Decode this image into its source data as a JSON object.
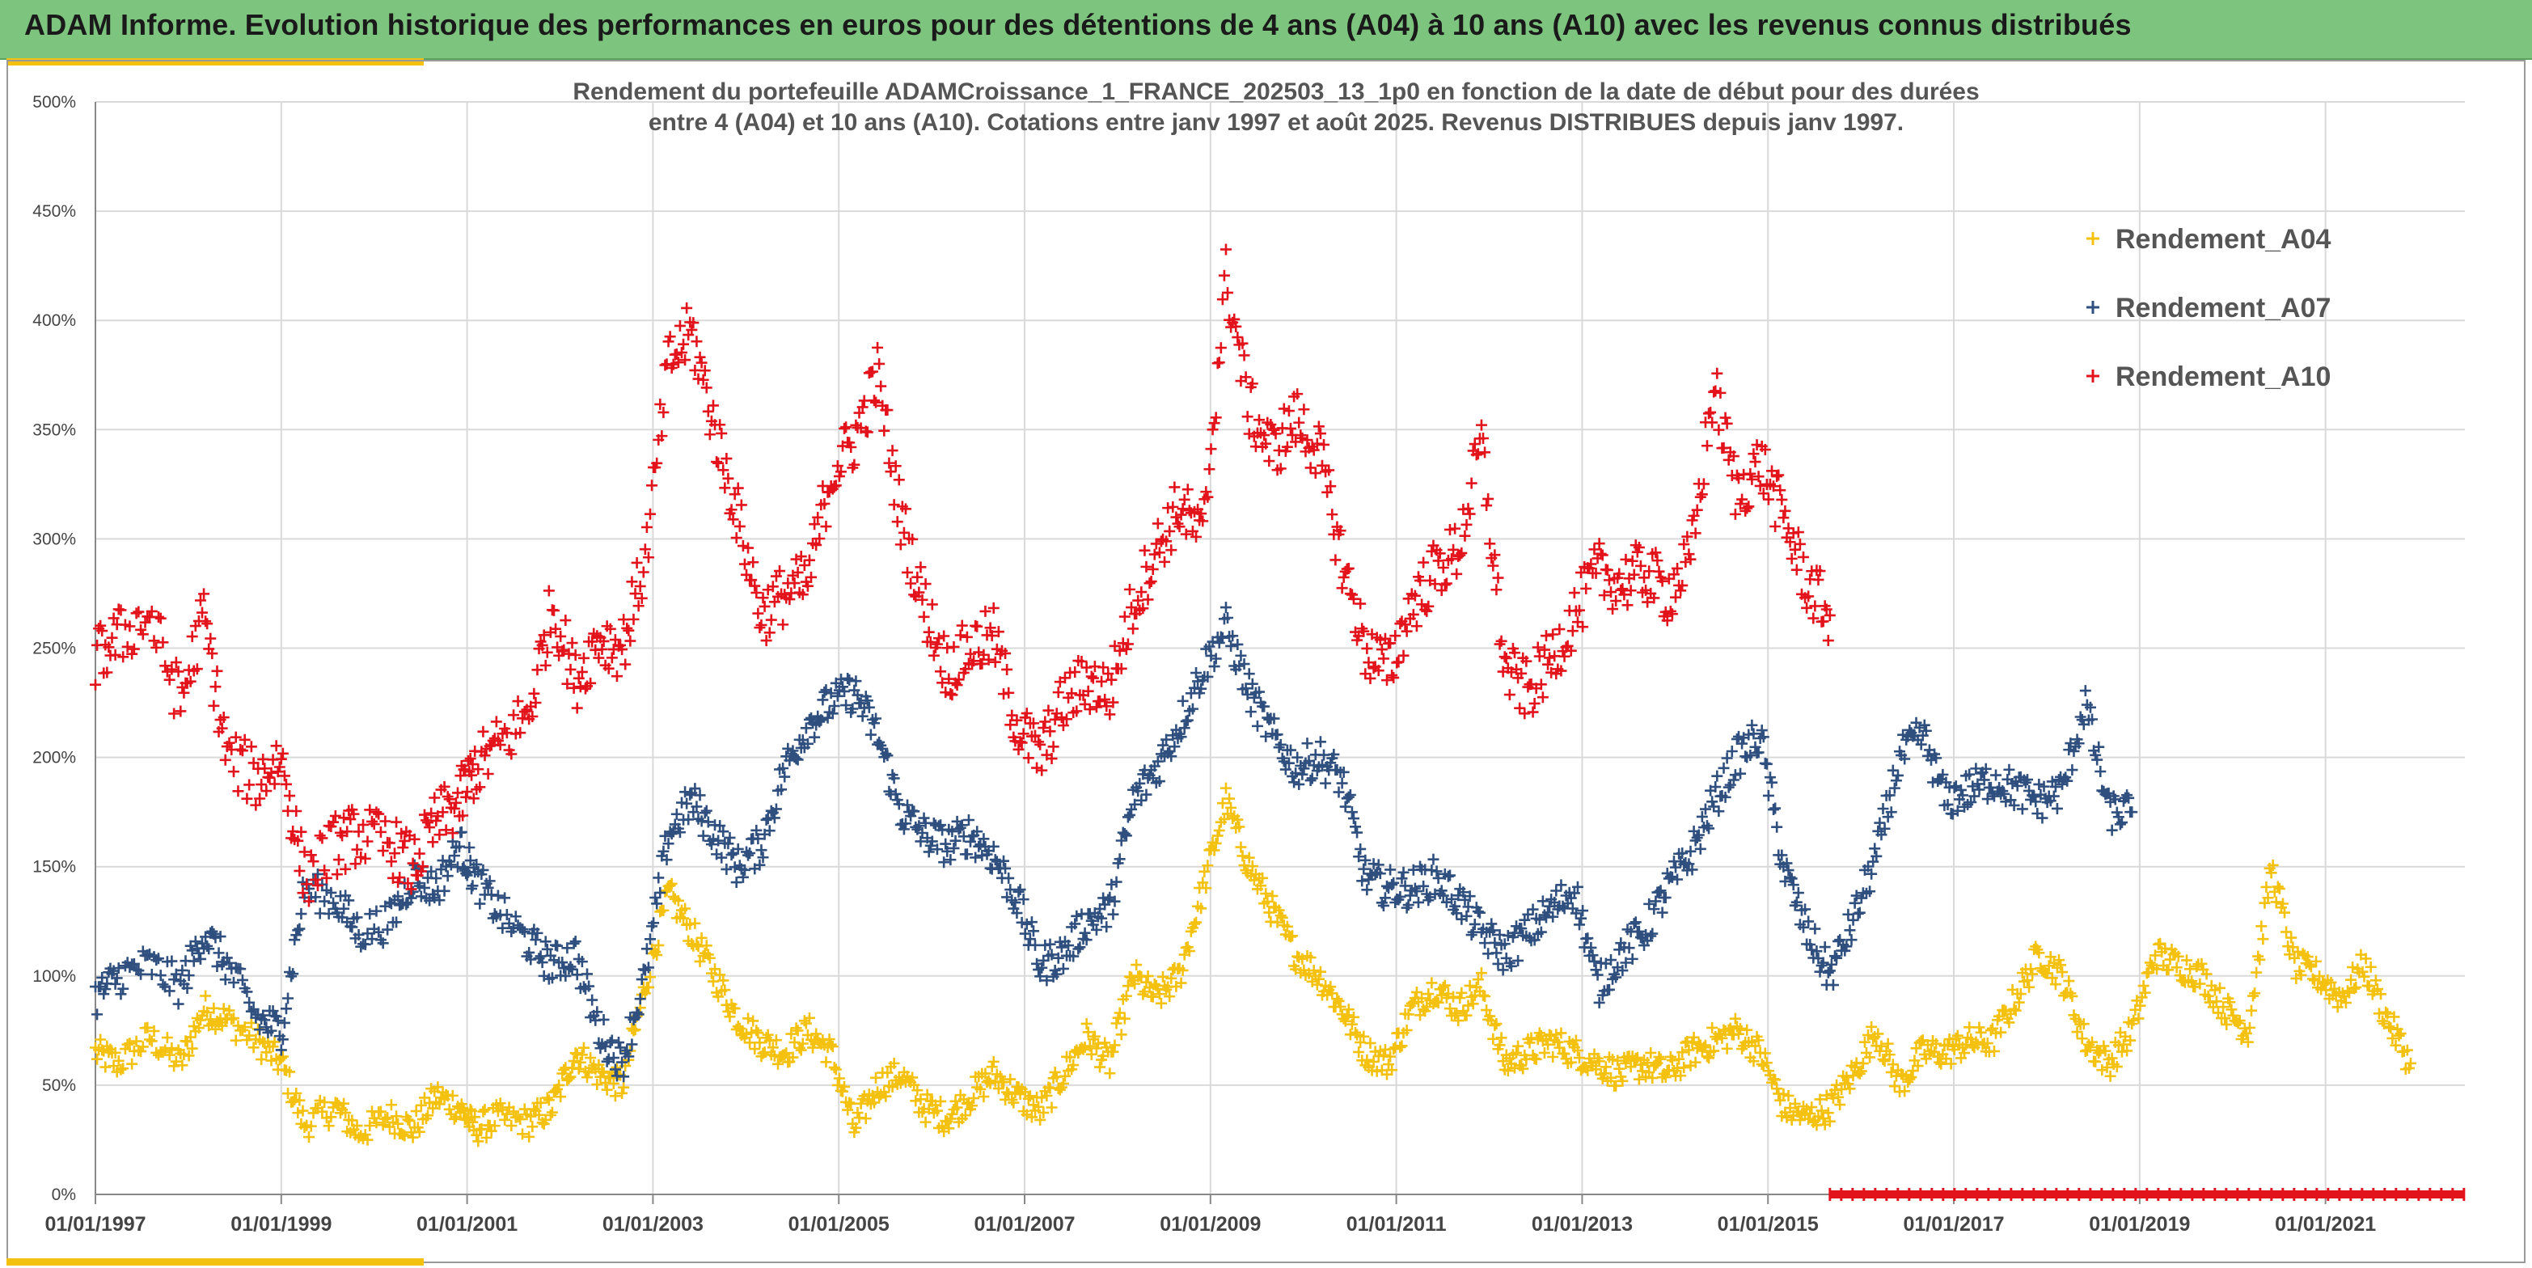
{
  "header": {
    "title": "ADAM Informe. Evolution historique des performances en euros pour des détentions de 4 ans (A04) à 10 ans (A10) avec les revenus connus distribués"
  },
  "colors": {
    "header_bg": "#7dc47e",
    "accent_yellow": "#f4c10f",
    "A04": "#f4c10f",
    "A07": "#2f4f7f",
    "A10": "#e3131b",
    "grid": "#d9d9d9",
    "marker_band": "#e3131b"
  },
  "chart_data": {
    "type": "scatter",
    "subtitle_lines": [
      "Rendement du portefeuille ADAMCroissance_1_FRANCE_202503_13_1p0  en fonction de la date de début pour des durées",
      "entre 4 (A04) et 10 ans (A10). Cotations entre janv 1997 et août 2025. Revenus DISTRIBUES depuis janv 1997."
    ],
    "x_axis": {
      "type": "date",
      "range": [
        "1997-01-01",
        "2022-07-01"
      ],
      "tick_labels": [
        "01/01/1997",
        "01/01/1999",
        "01/01/2001",
        "01/01/2003",
        "01/01/2005",
        "01/01/2007",
        "01/01/2009",
        "01/01/2011",
        "01/01/2013",
        "01/01/2015",
        "01/01/2017",
        "01/01/2019",
        "01/01/2021"
      ],
      "tick_years": [
        1997,
        1999,
        2001,
        2003,
        2005,
        2007,
        2009,
        2011,
        2013,
        2015,
        2017,
        2019,
        2021
      ]
    },
    "y_axis": {
      "range": [
        0,
        500
      ],
      "unit": "%",
      "tick_values": [
        0,
        50,
        100,
        150,
        200,
        250,
        300,
        350,
        400,
        450,
        500
      ],
      "tick_labels": [
        "0%",
        "50%",
        "100%",
        "150%",
        "200%",
        "250%",
        "300%",
        "350%",
        "400%",
        "450%",
        "500%"
      ]
    },
    "grid": true,
    "legend_position": "top-right",
    "series": [
      {
        "name": "Rendement_A04",
        "color": "#f4c10f",
        "points": [
          [
            "1997-01-01",
            65
          ],
          [
            "1997-04-01",
            60
          ],
          [
            "1997-08-01",
            72
          ],
          [
            "1997-12-01",
            60
          ],
          [
            "1998-03-01",
            85
          ],
          [
            "1998-06-01",
            80
          ],
          [
            "1998-10-01",
            70
          ],
          [
            "1999-01-01",
            60
          ],
          [
            "1999-04-01",
            32
          ],
          [
            "1999-08-01",
            40
          ],
          [
            "1999-11-01",
            28
          ],
          [
            "2000-03-01",
            36
          ],
          [
            "2000-06-01",
            30
          ],
          [
            "2000-09-01",
            45
          ],
          [
            "2000-12-01",
            40
          ],
          [
            "2001-02-01",
            30
          ],
          [
            "2001-05-01",
            35
          ],
          [
            "2001-09-01",
            33
          ],
          [
            "2001-12-01",
            40
          ],
          [
            "2002-03-01",
            65
          ],
          [
            "2002-06-01",
            55
          ],
          [
            "2002-09-01",
            50
          ],
          [
            "2002-12-01",
            95
          ],
          [
            "2003-03-01",
            138
          ],
          [
            "2003-06-01",
            120
          ],
          [
            "2003-09-01",
            100
          ],
          [
            "2003-12-01",
            80
          ],
          [
            "2004-03-01",
            70
          ],
          [
            "2004-06-01",
            65
          ],
          [
            "2004-09-01",
            75
          ],
          [
            "2004-12-01",
            65
          ],
          [
            "2005-03-01",
            30
          ],
          [
            "2005-06-01",
            50
          ],
          [
            "2005-09-01",
            55
          ],
          [
            "2005-12-01",
            40
          ],
          [
            "2006-03-01",
            35
          ],
          [
            "2006-06-01",
            45
          ],
          [
            "2006-09-01",
            55
          ],
          [
            "2006-12-01",
            45
          ],
          [
            "2007-03-01",
            38
          ],
          [
            "2007-06-01",
            55
          ],
          [
            "2007-09-01",
            72
          ],
          [
            "2007-12-01",
            60
          ],
          [
            "2008-03-01",
            100
          ],
          [
            "2008-06-01",
            90
          ],
          [
            "2008-09-01",
            100
          ],
          [
            "2008-12-01",
            140
          ],
          [
            "2009-03-01",
            180
          ],
          [
            "2009-06-01",
            150
          ],
          [
            "2009-09-01",
            130
          ],
          [
            "2009-12-01",
            110
          ],
          [
            "2010-03-01",
            100
          ],
          [
            "2010-06-01",
            85
          ],
          [
            "2010-09-01",
            65
          ],
          [
            "2010-12-01",
            60
          ],
          [
            "2011-03-01",
            85
          ],
          [
            "2011-06-01",
            95
          ],
          [
            "2011-09-01",
            85
          ],
          [
            "2011-12-01",
            95
          ],
          [
            "2012-03-01",
            60
          ],
          [
            "2012-06-01",
            65
          ],
          [
            "2012-09-01",
            70
          ],
          [
            "2012-12-01",
            65
          ],
          [
            "2013-03-01",
            60
          ],
          [
            "2013-06-01",
            55
          ],
          [
            "2013-09-01",
            60
          ],
          [
            "2013-12-01",
            55
          ],
          [
            "2014-03-01",
            65
          ],
          [
            "2014-06-01",
            70
          ],
          [
            "2014-09-01",
            75
          ],
          [
            "2014-12-01",
            65
          ],
          [
            "2015-03-01",
            40
          ],
          [
            "2015-06-01",
            35
          ],
          [
            "2015-09-01",
            40
          ],
          [
            "2015-12-01",
            55
          ],
          [
            "2016-03-01",
            75
          ],
          [
            "2016-06-01",
            50
          ],
          [
            "2016-09-01",
            65
          ],
          [
            "2016-12-01",
            65
          ],
          [
            "2017-03-01",
            70
          ],
          [
            "2017-06-01",
            70
          ],
          [
            "2017-09-01",
            90
          ],
          [
            "2017-12-01",
            110
          ],
          [
            "2018-03-01",
            100
          ],
          [
            "2018-06-01",
            70
          ],
          [
            "2018-09-01",
            60
          ],
          [
            "2018-12-01",
            75
          ],
          [
            "2019-03-01",
            110
          ],
          [
            "2019-06-01",
            105
          ],
          [
            "2019-09-01",
            100
          ],
          [
            "2019-12-01",
            85
          ],
          [
            "2020-03-01",
            75
          ],
          [
            "2020-06-01",
            150
          ],
          [
            "2020-09-01",
            105
          ],
          [
            "2020-12-01",
            100
          ],
          [
            "2021-03-01",
            90
          ],
          [
            "2021-06-01",
            105
          ],
          [
            "2021-09-01",
            80
          ],
          [
            "2021-12-01",
            60
          ]
        ]
      },
      {
        "name": "Rendement_A07",
        "color": "#2f4f7f",
        "points": [
          [
            "1997-01-01",
            90
          ],
          [
            "1997-04-01",
            100
          ],
          [
            "1997-08-01",
            105
          ],
          [
            "1997-12-01",
            95
          ],
          [
            "1998-03-01",
            120
          ],
          [
            "1998-06-01",
            105
          ],
          [
            "1998-10-01",
            80
          ],
          [
            "1999-01-01",
            75
          ],
          [
            "1999-04-01",
            140
          ],
          [
            "1999-08-01",
            135
          ],
          [
            "1999-11-01",
            120
          ],
          [
            "2000-03-01",
            125
          ],
          [
            "2000-06-01",
            145
          ],
          [
            "2000-09-01",
            140
          ],
          [
            "2000-12-01",
            160
          ],
          [
            "2001-02-01",
            145
          ],
          [
            "2001-05-01",
            130
          ],
          [
            "2001-09-01",
            115
          ],
          [
            "2001-12-01",
            105
          ],
          [
            "2002-03-01",
            110
          ],
          [
            "2002-06-01",
            75
          ],
          [
            "2002-09-01",
            60
          ],
          [
            "2002-12-01",
            100
          ],
          [
            "2003-03-01",
            165
          ],
          [
            "2003-06-01",
            180
          ],
          [
            "2003-09-01",
            165
          ],
          [
            "2003-12-01",
            150
          ],
          [
            "2004-03-01",
            160
          ],
          [
            "2004-06-01",
            195
          ],
          [
            "2004-09-01",
            215
          ],
          [
            "2004-12-01",
            225
          ],
          [
            "2005-03-01",
            230
          ],
          [
            "2005-06-01",
            210
          ],
          [
            "2005-09-01",
            175
          ],
          [
            "2005-12-01",
            165
          ],
          [
            "2006-03-01",
            160
          ],
          [
            "2006-06-01",
            165
          ],
          [
            "2006-09-01",
            155
          ],
          [
            "2006-12-01",
            135
          ],
          [
            "2007-03-01",
            105
          ],
          [
            "2007-06-01",
            110
          ],
          [
            "2007-09-01",
            125
          ],
          [
            "2007-12-01",
            130
          ],
          [
            "2008-03-01",
            180
          ],
          [
            "2008-06-01",
            195
          ],
          [
            "2008-09-01",
            215
          ],
          [
            "2008-12-01",
            240
          ],
          [
            "2009-03-01",
            260
          ],
          [
            "2009-06-01",
            230
          ],
          [
            "2009-09-01",
            210
          ],
          [
            "2009-12-01",
            195
          ],
          [
            "2010-03-01",
            200
          ],
          [
            "2010-06-01",
            190
          ],
          [
            "2010-09-01",
            145
          ],
          [
            "2010-12-01",
            140
          ],
          [
            "2011-03-01",
            140
          ],
          [
            "2011-06-01",
            145
          ],
          [
            "2011-09-01",
            135
          ],
          [
            "2011-12-01",
            120
          ],
          [
            "2012-03-01",
            110
          ],
          [
            "2012-06-01",
            120
          ],
          [
            "2012-09-01",
            130
          ],
          [
            "2012-12-01",
            140
          ],
          [
            "2013-03-01",
            95
          ],
          [
            "2013-06-01",
            110
          ],
          [
            "2013-09-01",
            120
          ],
          [
            "2013-12-01",
            140
          ],
          [
            "2014-03-01",
            155
          ],
          [
            "2014-06-01",
            180
          ],
          [
            "2014-09-01",
            200
          ],
          [
            "2014-12-01",
            210
          ],
          [
            "2015-03-01",
            150
          ],
          [
            "2015-06-01",
            120
          ],
          [
            "2015-09-01",
            100
          ],
          [
            "2015-12-01",
            125
          ],
          [
            "2016-03-01",
            155
          ],
          [
            "2016-06-01",
            200
          ],
          [
            "2016-09-01",
            210
          ],
          [
            "2016-12-01",
            180
          ],
          [
            "2017-03-01",
            185
          ],
          [
            "2017-06-01",
            190
          ],
          [
            "2017-09-01",
            185
          ],
          [
            "2017-12-01",
            180
          ],
          [
            "2018-03-01",
            185
          ],
          [
            "2018-06-01",
            225
          ],
          [
            "2018-09-01",
            175
          ],
          [
            "2018-12-01",
            175
          ]
        ]
      },
      {
        "name": "Rendement_A10",
        "color": "#e3131b",
        "points": [
          [
            "1997-01-01",
            245
          ],
          [
            "1997-04-01",
            255
          ],
          [
            "1997-08-01",
            265
          ],
          [
            "1997-12-01",
            225
          ],
          [
            "1998-03-01",
            265
          ],
          [
            "1998-06-01",
            200
          ],
          [
            "1998-10-01",
            190
          ],
          [
            "1999-01-01",
            200
          ],
          [
            "1999-04-01",
            145
          ],
          [
            "1999-08-01",
            160
          ],
          [
            "1999-11-01",
            165
          ],
          [
            "2000-03-01",
            160
          ],
          [
            "2000-06-01",
            150
          ],
          [
            "2000-09-01",
            170
          ],
          [
            "2000-12-01",
            180
          ],
          [
            "2001-02-01",
            195
          ],
          [
            "2001-05-01",
            205
          ],
          [
            "2001-09-01",
            220
          ],
          [
            "2001-12-01",
            270
          ],
          [
            "2002-03-01",
            235
          ],
          [
            "2002-06-01",
            255
          ],
          [
            "2002-09-01",
            250
          ],
          [
            "2002-12-01",
            290
          ],
          [
            "2003-03-01",
            380
          ],
          [
            "2003-06-01",
            395
          ],
          [
            "2003-09-01",
            350
          ],
          [
            "2003-12-01",
            310
          ],
          [
            "2004-03-01",
            265
          ],
          [
            "2004-06-01",
            275
          ],
          [
            "2004-09-01",
            280
          ],
          [
            "2004-12-01",
            330
          ],
          [
            "2005-03-01",
            345
          ],
          [
            "2005-06-01",
            375
          ],
          [
            "2005-09-01",
            310
          ],
          [
            "2005-12-01",
            270
          ],
          [
            "2006-03-01",
            240
          ],
          [
            "2006-06-01",
            250
          ],
          [
            "2006-09-01",
            255
          ],
          [
            "2006-12-01",
            215
          ],
          [
            "2007-03-01",
            200
          ],
          [
            "2007-06-01",
            225
          ],
          [
            "2007-09-01",
            235
          ],
          [
            "2007-12-01",
            230
          ],
          [
            "2008-03-01",
            270
          ],
          [
            "2008-06-01",
            295
          ],
          [
            "2008-09-01",
            315
          ],
          [
            "2008-12-01",
            300
          ],
          [
            "2009-03-01",
            420
          ],
          [
            "2009-06-01",
            360
          ],
          [
            "2009-09-01",
            340
          ],
          [
            "2009-12-01",
            355
          ],
          [
            "2010-03-01",
            340
          ],
          [
            "2010-06-01",
            290
          ],
          [
            "2010-09-01",
            250
          ],
          [
            "2010-12-01",
            240
          ],
          [
            "2011-03-01",
            270
          ],
          [
            "2011-06-01",
            285
          ],
          [
            "2011-09-01",
            295
          ],
          [
            "2011-12-01",
            345
          ],
          [
            "2012-03-01",
            240
          ],
          [
            "2012-06-01",
            230
          ],
          [
            "2012-09-01",
            245
          ],
          [
            "2012-12-01",
            265
          ],
          [
            "2013-03-01",
            285
          ],
          [
            "2013-06-01",
            280
          ],
          [
            "2013-09-01",
            285
          ],
          [
            "2013-12-01",
            275
          ],
          [
            "2014-03-01",
            290
          ],
          [
            "2014-06-01",
            370
          ],
          [
            "2014-09-01",
            320
          ],
          [
            "2014-12-01",
            335
          ],
          [
            "2015-03-01",
            310
          ],
          [
            "2015-06-01",
            280
          ],
          [
            "2015-09-01",
            265
          ]
        ]
      }
    ],
    "marker_band": {
      "color": "#e3131b",
      "x_range": [
        "2015-09-01",
        "2022-07-01"
      ],
      "y": 0
    }
  }
}
